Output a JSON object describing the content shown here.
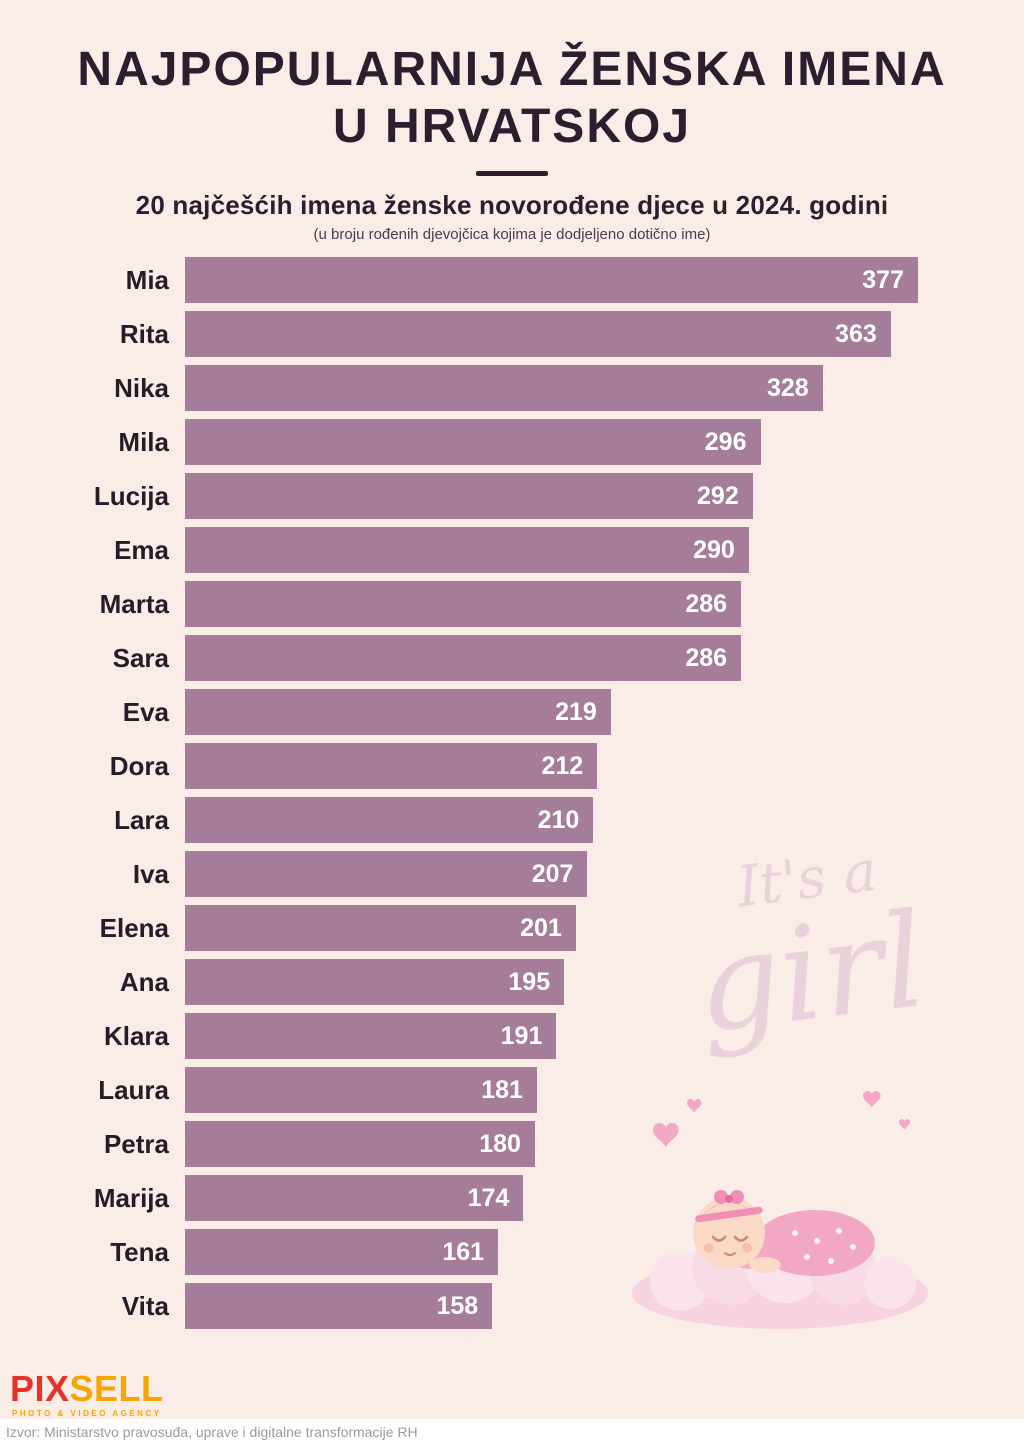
{
  "title": {
    "line1": "NAJPOPULARNIJA ŽENSKA IMENA",
    "line2": "U HRVATSKOJ"
  },
  "subtitle": "20 najčešćih imena ženske novorođene djece u 2024. godini",
  "note": "(u broju rođenih djevojčica kojima je dodjeljeno dotično ime)",
  "chart_data": {
    "type": "bar",
    "orientation": "horizontal",
    "title": "20 najčešćih imena ženske novorođene djece u 2024. godini",
    "categories": [
      "Mia",
      "Rita",
      "Nika",
      "Mila",
      "Lucija",
      "Ema",
      "Marta",
      "Sara",
      "Eva",
      "Dora",
      "Lara",
      "Iva",
      "Elena",
      "Ana",
      "Klara",
      "Laura",
      "Petra",
      "Marija",
      "Tena",
      "Vita"
    ],
    "values": [
      377,
      363,
      328,
      296,
      292,
      290,
      286,
      286,
      219,
      212,
      210,
      207,
      201,
      195,
      191,
      181,
      180,
      174,
      161,
      158
    ],
    "xlim": [
      0,
      377
    ],
    "grid": false,
    "legend": false,
    "bar_color": "#a67d99",
    "value_label_color": "#ffffff"
  },
  "watermark": {
    "line1": "It's a",
    "line2": "girl"
  },
  "footer": {
    "logo": {
      "part1": "PIX",
      "part2": "SELL",
      "tagline": "PHOTO & VIDEO AGENCY"
    },
    "source": "Izvor: Ministarstvo pravosuđa, uprave i digitalne transformacije RH"
  },
  "colors": {
    "background": "#faece7",
    "bar": "#a67d99",
    "title": "#2b1e2e",
    "value-text": "#ffffff",
    "watermark": "#ead2da",
    "logo-red": "#e6332a",
    "logo-orange": "#f7a600",
    "source-text": "#9b9b9b"
  }
}
